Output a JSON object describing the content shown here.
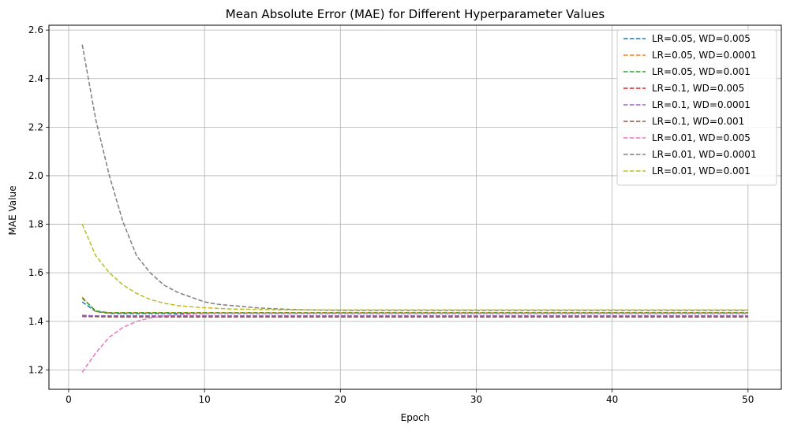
{
  "chart_data": {
    "type": "line",
    "title": "Mean Absolute Error (MAE) for Different Hyperparameter Values",
    "xlabel": "Epoch",
    "ylabel": "MAE Value",
    "xlim": [
      -1.45,
      52.45
    ],
    "ylim": [
      1.12,
      2.62
    ],
    "xticks": [
      0,
      10,
      20,
      30,
      40,
      50
    ],
    "yticks": [
      1.2,
      1.4,
      1.6,
      1.8,
      2.0,
      2.2,
      2.4,
      2.6
    ],
    "grid": true,
    "line_style": "dashed",
    "legend_position": "top-right",
    "x": [
      1,
      2,
      3,
      4,
      5,
      6,
      7,
      8,
      9,
      10,
      11,
      12,
      13,
      14,
      15,
      16,
      17,
      18,
      19,
      20,
      21,
      22,
      23,
      24,
      25,
      26,
      27,
      28,
      29,
      30,
      31,
      32,
      33,
      34,
      35,
      36,
      37,
      38,
      39,
      40,
      41,
      42,
      43,
      44,
      45,
      46,
      47,
      48,
      49,
      50
    ],
    "series": [
      {
        "name": "LR=0.05, WD=0.005",
        "color": "#1f77b4",
        "values": [
          1.48,
          1.44,
          1.433,
          1.432,
          1.432,
          1.432,
          1.432,
          1.432,
          1.432,
          1.432,
          1.432,
          1.432,
          1.432,
          1.432,
          1.432,
          1.432,
          1.432,
          1.432,
          1.432,
          1.432,
          1.432,
          1.432,
          1.432,
          1.432,
          1.432,
          1.432,
          1.432,
          1.432,
          1.432,
          1.432,
          1.432,
          1.432,
          1.432,
          1.432,
          1.432,
          1.432,
          1.432,
          1.432,
          1.432,
          1.432,
          1.432,
          1.432,
          1.432,
          1.432,
          1.432,
          1.432,
          1.432,
          1.432,
          1.432,
          1.432
        ]
      },
      {
        "name": "LR=0.05, WD=0.0001",
        "color": "#ff7f0e",
        "values": [
          1.5,
          1.44,
          1.436,
          1.436,
          1.436,
          1.436,
          1.436,
          1.436,
          1.436,
          1.436,
          1.436,
          1.436,
          1.436,
          1.436,
          1.436,
          1.436,
          1.436,
          1.436,
          1.436,
          1.436,
          1.436,
          1.436,
          1.436,
          1.436,
          1.436,
          1.436,
          1.436,
          1.436,
          1.436,
          1.436,
          1.436,
          1.436,
          1.436,
          1.436,
          1.436,
          1.436,
          1.436,
          1.436,
          1.436,
          1.436,
          1.436,
          1.436,
          1.436,
          1.436,
          1.436,
          1.436,
          1.436,
          1.436,
          1.436,
          1.436
        ]
      },
      {
        "name": "LR=0.05, WD=0.001",
        "color": "#2ca02c",
        "values": [
          1.495,
          1.443,
          1.435,
          1.435,
          1.435,
          1.435,
          1.435,
          1.435,
          1.435,
          1.435,
          1.435,
          1.435,
          1.435,
          1.435,
          1.435,
          1.435,
          1.435,
          1.435,
          1.435,
          1.435,
          1.435,
          1.435,
          1.435,
          1.435,
          1.435,
          1.435,
          1.435,
          1.435,
          1.435,
          1.435,
          1.435,
          1.435,
          1.435,
          1.435,
          1.435,
          1.435,
          1.435,
          1.435,
          1.435,
          1.435,
          1.435,
          1.435,
          1.435,
          1.435,
          1.435,
          1.435,
          1.435,
          1.435,
          1.435,
          1.435
        ]
      },
      {
        "name": "LR=0.1, WD=0.005",
        "color": "#d62728",
        "values": [
          1.422,
          1.421,
          1.42,
          1.42,
          1.42,
          1.42,
          1.42,
          1.42,
          1.42,
          1.42,
          1.42,
          1.42,
          1.42,
          1.42,
          1.42,
          1.42,
          1.42,
          1.42,
          1.42,
          1.42,
          1.42,
          1.42,
          1.42,
          1.42,
          1.42,
          1.42,
          1.42,
          1.42,
          1.42,
          1.42,
          1.42,
          1.42,
          1.42,
          1.42,
          1.42,
          1.42,
          1.42,
          1.42,
          1.42,
          1.42,
          1.42,
          1.42,
          1.42,
          1.42,
          1.42,
          1.42,
          1.42,
          1.42,
          1.42,
          1.42
        ]
      },
      {
        "name": "LR=0.1, WD=0.0001",
        "color": "#9467bd",
        "values": [
          1.425,
          1.423,
          1.423,
          1.423,
          1.423,
          1.423,
          1.423,
          1.423,
          1.423,
          1.423,
          1.423,
          1.423,
          1.423,
          1.423,
          1.423,
          1.423,
          1.423,
          1.423,
          1.423,
          1.423,
          1.423,
          1.423,
          1.423,
          1.423,
          1.423,
          1.423,
          1.423,
          1.423,
          1.423,
          1.423,
          1.423,
          1.423,
          1.423,
          1.423,
          1.423,
          1.423,
          1.423,
          1.423,
          1.423,
          1.423,
          1.423,
          1.423,
          1.423,
          1.423,
          1.423,
          1.423,
          1.423,
          1.423,
          1.423,
          1.423
        ]
      },
      {
        "name": "LR=0.1, WD=0.001",
        "color": "#8c564b",
        "values": [
          1.42,
          1.419,
          1.418,
          1.418,
          1.418,
          1.418,
          1.418,
          1.418,
          1.418,
          1.418,
          1.418,
          1.418,
          1.418,
          1.418,
          1.418,
          1.418,
          1.418,
          1.418,
          1.418,
          1.418,
          1.418,
          1.418,
          1.418,
          1.418,
          1.418,
          1.418,
          1.418,
          1.418,
          1.418,
          1.418,
          1.418,
          1.418,
          1.418,
          1.418,
          1.418,
          1.418,
          1.418,
          1.418,
          1.418,
          1.418,
          1.418,
          1.418,
          1.418,
          1.418,
          1.418,
          1.418,
          1.418,
          1.418,
          1.418,
          1.418
        ]
      },
      {
        "name": "LR=0.01, WD=0.005",
        "color": "#e377c2",
        "values": [
          1.19,
          1.27,
          1.335,
          1.375,
          1.4,
          1.414,
          1.422,
          1.427,
          1.43,
          1.432,
          1.433,
          1.433,
          1.433,
          1.433,
          1.433,
          1.433,
          1.433,
          1.433,
          1.433,
          1.433,
          1.433,
          1.433,
          1.433,
          1.433,
          1.433,
          1.433,
          1.433,
          1.433,
          1.433,
          1.433,
          1.433,
          1.433,
          1.433,
          1.433,
          1.433,
          1.433,
          1.433,
          1.433,
          1.433,
          1.433,
          1.433,
          1.433,
          1.433,
          1.433,
          1.433,
          1.433,
          1.433,
          1.433,
          1.433,
          1.433
        ]
      },
      {
        "name": "LR=0.01, WD=0.0001",
        "color": "#7f7f7f",
        "values": [
          2.54,
          2.23,
          2.0,
          1.81,
          1.67,
          1.6,
          1.55,
          1.52,
          1.5,
          1.48,
          1.47,
          1.465,
          1.46,
          1.455,
          1.452,
          1.45,
          1.448,
          1.447,
          1.446,
          1.445,
          1.445,
          1.445,
          1.445,
          1.445,
          1.445,
          1.445,
          1.445,
          1.445,
          1.445,
          1.445,
          1.445,
          1.445,
          1.445,
          1.445,
          1.445,
          1.445,
          1.445,
          1.445,
          1.445,
          1.445,
          1.445,
          1.445,
          1.445,
          1.445,
          1.445,
          1.445,
          1.445,
          1.445,
          1.445,
          1.445
        ]
      },
      {
        "name": "LR=0.01, WD=0.001",
        "color": "#bcbd22",
        "values": [
          1.8,
          1.67,
          1.6,
          1.55,
          1.515,
          1.49,
          1.475,
          1.465,
          1.46,
          1.456,
          1.453,
          1.451,
          1.45,
          1.449,
          1.448,
          1.447,
          1.447,
          1.447,
          1.447,
          1.447,
          1.447,
          1.447,
          1.447,
          1.447,
          1.447,
          1.447,
          1.447,
          1.447,
          1.447,
          1.447,
          1.447,
          1.447,
          1.447,
          1.447,
          1.447,
          1.447,
          1.447,
          1.447,
          1.447,
          1.447,
          1.447,
          1.447,
          1.447,
          1.447,
          1.447,
          1.447,
          1.447,
          1.447,
          1.447,
          1.447
        ]
      }
    ]
  }
}
